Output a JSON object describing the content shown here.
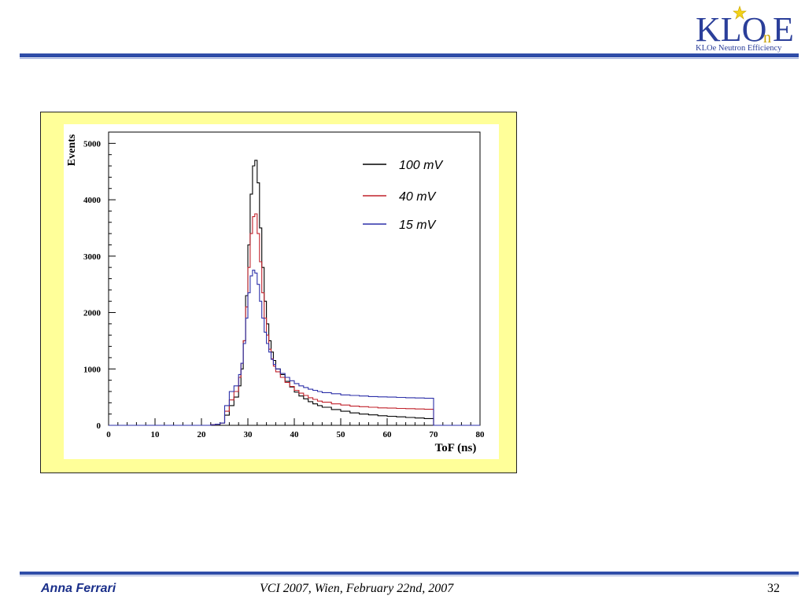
{
  "logo": {
    "main_text": "KLO",
    "suffix": "E",
    "sub_letter": "n",
    "tagline": "KLOe Neutron Efficiency"
  },
  "footer": {
    "author": "Anna Ferrari",
    "conference": "VCI 2007, Wien, February 22nd, 2007",
    "page": "32"
  },
  "colors": {
    "accent": "#2f4da8",
    "frame": "#ffff99",
    "series_100": "#000000",
    "series_40": "#c0202a",
    "series_15": "#2b2fa8"
  },
  "chart_data": {
    "type": "line",
    "step": true,
    "title": "",
    "xlabel": "ToF (ns)",
    "ylabel": "Events",
    "xlim": [
      0,
      80
    ],
    "ylim": [
      0,
      5200
    ],
    "xticks": [
      "0",
      "10",
      "20",
      "30",
      "40",
      "50",
      "60",
      "70",
      "80"
    ],
    "yticks": [
      "0",
      "1000",
      "2000",
      "3000",
      "4000",
      "5000"
    ],
    "grid": false,
    "legend_position": "top-right",
    "x": [
      0,
      2,
      4,
      6,
      8,
      10,
      12,
      14,
      16,
      18,
      20,
      22,
      23,
      24,
      25,
      26,
      27,
      28,
      28.5,
      29,
      29.5,
      30,
      30.5,
      31,
      31.5,
      32,
      32.5,
      33,
      33.5,
      34,
      34.5,
      35,
      35.5,
      36,
      37,
      38,
      39,
      40,
      41,
      42,
      43,
      44,
      45,
      46,
      48,
      50,
      52,
      54,
      56,
      58,
      60,
      62,
      64,
      66,
      68,
      70,
      72,
      74,
      76,
      78,
      80
    ],
    "series": [
      {
        "name": "100 mV",
        "color": "#000000",
        "values": [
          0,
          0,
          0,
          0,
          0,
          0,
          0,
          0,
          0,
          0,
          0,
          10,
          20,
          40,
          180,
          350,
          500,
          700,
          1000,
          1500,
          2300,
          3200,
          4100,
          4600,
          4700,
          4300,
          3500,
          2800,
          2200,
          1800,
          1500,
          1300,
          1150,
          1000,
          900,
          780,
          680,
          590,
          520,
          470,
          420,
          380,
          350,
          320,
          280,
          250,
          220,
          200,
          185,
          170,
          160,
          150,
          140,
          130,
          120,
          0,
          0,
          0,
          0,
          0,
          0
        ]
      },
      {
        "name": "40 mV",
        "color": "#c0202a",
        "values": [
          0,
          0,
          0,
          0,
          0,
          0,
          0,
          0,
          0,
          0,
          0,
          10,
          20,
          40,
          250,
          450,
          600,
          850,
          1100,
          1500,
          2100,
          2800,
          3400,
          3700,
          3750,
          3400,
          2900,
          2350,
          1900,
          1600,
          1350,
          1180,
          1050,
          950,
          850,
          760,
          690,
          620,
          570,
          530,
          490,
          460,
          430,
          410,
          380,
          360,
          340,
          330,
          320,
          310,
          305,
          300,
          295,
          290,
          285,
          0,
          0,
          0,
          0,
          0,
          0
        ]
      },
      {
        "name": "15 mV",
        "color": "#2b2fa8",
        "values": [
          0,
          0,
          0,
          0,
          0,
          0,
          0,
          0,
          0,
          0,
          0,
          10,
          20,
          40,
          350,
          600,
          700,
          900,
          1100,
          1450,
          1900,
          2350,
          2650,
          2750,
          2700,
          2500,
          2200,
          1900,
          1650,
          1450,
          1300,
          1170,
          1080,
          1000,
          920,
          850,
          790,
          740,
          700,
          670,
          640,
          620,
          600,
          580,
          560,
          540,
          530,
          520,
          510,
          505,
          500,
          495,
          490,
          485,
          480,
          0,
          0,
          0,
          0,
          0,
          0
        ]
      }
    ]
  }
}
